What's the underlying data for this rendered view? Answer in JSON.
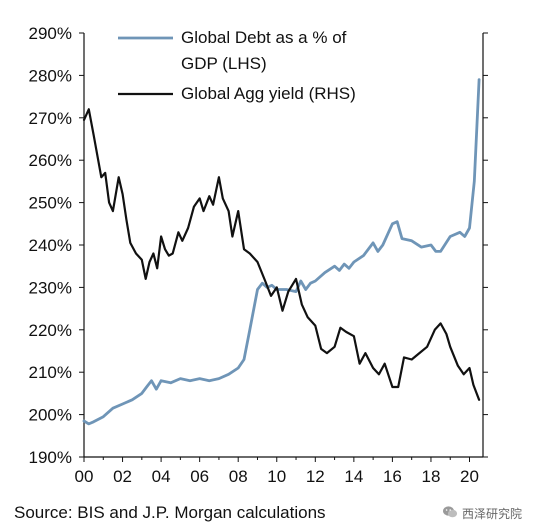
{
  "chart_data": {
    "type": "line",
    "title": "",
    "xlabel": "",
    "ylabel": "",
    "x_ticks": [
      "00",
      "02",
      "04",
      "06",
      "08",
      "10",
      "12",
      "14",
      "16",
      "18",
      "20"
    ],
    "xlim": [
      2000,
      2020.7
    ],
    "y_left_ticks": [
      "190%",
      "200%",
      "210%",
      "220%",
      "230%",
      "240%",
      "250%",
      "260%",
      "270%",
      "280%",
      "290%"
    ],
    "ylim": [
      190,
      290
    ],
    "grid": false,
    "legend_position": "top-left",
    "series": [
      {
        "name": "Global Debt as a % of GDP (LHS)",
        "legend_lines": [
          "Global Debt as a % of",
          "GDP (LHS)"
        ],
        "color": "#6f95b7",
        "x": [
          2000.0,
          2000.25,
          2000.5,
          2001.0,
          2001.5,
          2002.0,
          2002.5,
          2003.0,
          2003.25,
          2003.5,
          2003.75,
          2004.0,
          2004.5,
          2005.0,
          2005.5,
          2006.0,
          2006.5,
          2007.0,
          2007.5,
          2008.0,
          2008.3,
          2008.6,
          2009.0,
          2009.25,
          2009.5,
          2009.75,
          2010.0,
          2010.5,
          2011.0,
          2011.25,
          2011.5,
          2011.75,
          2012.0,
          2012.5,
          2013.0,
          2013.25,
          2013.5,
          2013.75,
          2014.0,
          2014.5,
          2015.0,
          2015.25,
          2015.5,
          2016.0,
          2016.25,
          2016.5,
          2017.0,
          2017.5,
          2018.0,
          2018.25,
          2018.5,
          2019.0,
          2019.5,
          2019.75,
          2020.0,
          2020.25,
          2020.5
        ],
        "values": [
          198.5,
          197.8,
          198.3,
          199.5,
          201.5,
          202.5,
          203.5,
          205.0,
          206.5,
          208.0,
          206.0,
          208.0,
          207.5,
          208.5,
          208.0,
          208.5,
          208.0,
          208.5,
          209.5,
          211.0,
          213.0,
          220.0,
          229.5,
          231.0,
          230.0,
          230.5,
          229.5,
          229.5,
          229.0,
          231.5,
          229.5,
          231.0,
          231.5,
          233.5,
          235.0,
          234.0,
          235.5,
          234.5,
          236.0,
          237.5,
          240.5,
          238.5,
          240.0,
          245.0,
          245.5,
          241.5,
          241.0,
          239.5,
          240.0,
          238.5,
          238.5,
          242.0,
          243.0,
          242.0,
          244.0,
          255.0,
          279.0
        ]
      },
      {
        "name": "Global Agg yield (RHS)",
        "legend_lines": [
          "Global Agg yield (RHS)"
        ],
        "color": "#111111",
        "x": [
          2000.0,
          2000.25,
          2000.5,
          2000.9,
          2001.1,
          2001.3,
          2001.5,
          2001.8,
          2002.0,
          2002.2,
          2002.4,
          2002.7,
          2003.0,
          2003.2,
          2003.4,
          2003.6,
          2003.8,
          2004.0,
          2004.2,
          2004.4,
          2004.6,
          2004.9,
          2005.1,
          2005.4,
          2005.7,
          2006.0,
          2006.2,
          2006.5,
          2006.7,
          2007.0,
          2007.2,
          2007.5,
          2007.7,
          2008.0,
          2008.3,
          2008.6,
          2009.0,
          2009.4,
          2009.7,
          2010.0,
          2010.3,
          2010.6,
          2011.0,
          2011.3,
          2011.6,
          2012.0,
          2012.3,
          2012.6,
          2013.0,
          2013.3,
          2013.6,
          2014.0,
          2014.3,
          2014.6,
          2015.0,
          2015.3,
          2015.6,
          2016.0,
          2016.3,
          2016.6,
          2017.0,
          2017.4,
          2017.8,
          2018.2,
          2018.5,
          2018.8,
          2019.0,
          2019.4,
          2019.7,
          2020.0,
          2020.2,
          2020.5
        ],
        "values": [
          269.5,
          272.0,
          266.0,
          256.0,
          257.0,
          250.0,
          248.0,
          256.0,
          252.0,
          246.0,
          240.5,
          238.0,
          236.5,
          232.0,
          236.0,
          238.0,
          234.5,
          242.0,
          239.0,
          237.5,
          238.0,
          243.0,
          241.0,
          244.0,
          249.0,
          251.0,
          248.0,
          251.5,
          249.5,
          256.0,
          251.0,
          248.0,
          242.0,
          248.0,
          239.0,
          238.0,
          236.0,
          231.5,
          228.0,
          230.0,
          224.5,
          229.0,
          232.0,
          226.0,
          223.0,
          221.0,
          215.5,
          214.5,
          216.0,
          220.5,
          219.5,
          218.5,
          212.0,
          214.5,
          211.0,
          209.5,
          212.0,
          206.5,
          206.5,
          213.5,
          213.0,
          214.5,
          216.0,
          220.0,
          221.5,
          219.0,
          216.0,
          211.5,
          209.5,
          211.0,
          207.0,
          203.5
        ]
      }
    ]
  },
  "source_text": "Source: BIS and J.P. Morgan calculations",
  "watermark_text": "西泽研究院"
}
